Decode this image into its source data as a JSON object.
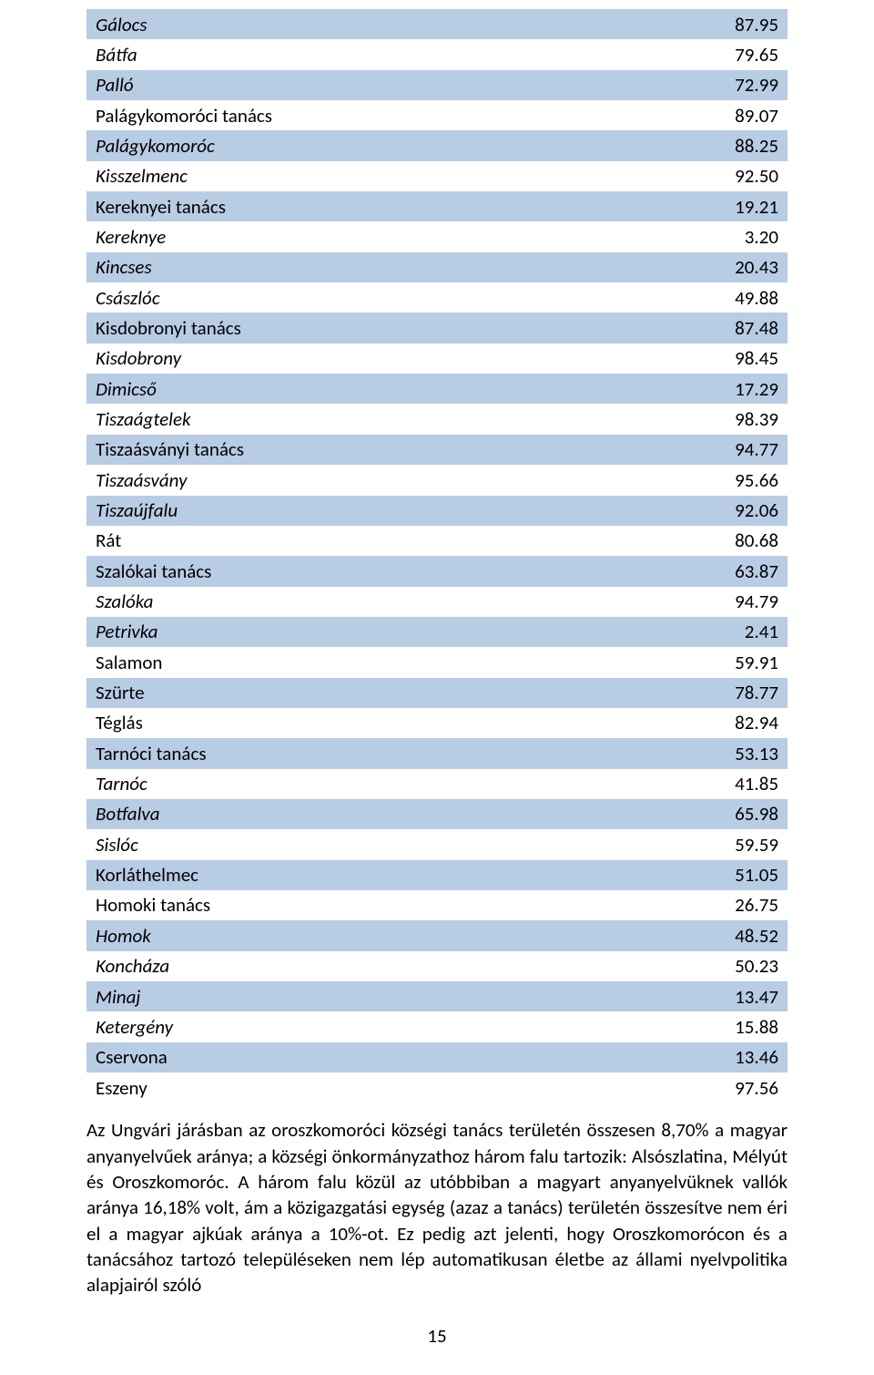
{
  "table": {
    "row_colors": {
      "blue": "#b8cce4",
      "white": "#ffffff"
    },
    "rows": [
      {
        "name": "Gálocs",
        "value": "87.95",
        "italic": true,
        "shade": "blue"
      },
      {
        "name": "Bátfa",
        "value": "79.65",
        "italic": true,
        "shade": "white"
      },
      {
        "name": "Palló",
        "value": "72.99",
        "italic": true,
        "shade": "blue"
      },
      {
        "name": "Palágykomoróci tanács",
        "value": "89.07",
        "italic": false,
        "shade": "white"
      },
      {
        "name": "Palágykomoróc",
        "value": "88.25",
        "italic": true,
        "shade": "blue"
      },
      {
        "name": "Kisszelmenc",
        "value": "92.50",
        "italic": true,
        "shade": "white"
      },
      {
        "name": "Kereknyei tanács",
        "value": "19.21",
        "italic": false,
        "shade": "blue"
      },
      {
        "name": "Kereknye",
        "value": "3.20",
        "italic": true,
        "shade": "white"
      },
      {
        "name": "Kincses",
        "value": "20.43",
        "italic": true,
        "shade": "blue"
      },
      {
        "name": "Császlóc",
        "value": "49.88",
        "italic": true,
        "shade": "white"
      },
      {
        "name": "Kisdobronyi tanács",
        "value": "87.48",
        "italic": false,
        "shade": "blue"
      },
      {
        "name": "Kisdobrony",
        "value": "98.45",
        "italic": true,
        "shade": "white"
      },
      {
        "name": "Dimicső",
        "value": "17.29",
        "italic": true,
        "shade": "blue"
      },
      {
        "name": "Tiszaágtelek",
        "value": "98.39",
        "italic": true,
        "shade": "white"
      },
      {
        "name": "Tiszaásványi tanács",
        "value": "94.77",
        "italic": false,
        "shade": "blue"
      },
      {
        "name": "Tiszaásvány",
        "value": "95.66",
        "italic": true,
        "shade": "white"
      },
      {
        "name": "Tiszaújfalu",
        "value": "92.06",
        "italic": true,
        "shade": "blue"
      },
      {
        "name": "Rát",
        "value": "80.68",
        "italic": false,
        "shade": "white"
      },
      {
        "name": "Szalókai tanács",
        "value": "63.87",
        "italic": false,
        "shade": "blue"
      },
      {
        "name": "Szalóka",
        "value": "94.79",
        "italic": true,
        "shade": "white"
      },
      {
        "name": "Petrivka",
        "value": "2.41",
        "italic": true,
        "shade": "blue"
      },
      {
        "name": "Salamon",
        "value": "59.91",
        "italic": false,
        "shade": "white"
      },
      {
        "name": "Szürte",
        "value": "78.77",
        "italic": false,
        "shade": "blue"
      },
      {
        "name": "Téglás",
        "value": "82.94",
        "italic": false,
        "shade": "white"
      },
      {
        "name": "Tarnóci tanács",
        "value": "53.13",
        "italic": false,
        "shade": "blue"
      },
      {
        "name": "Tarnóc",
        "value": "41.85",
        "italic": true,
        "shade": "white"
      },
      {
        "name": "Botfalva",
        "value": "65.98",
        "italic": true,
        "shade": "blue"
      },
      {
        "name": "Sislóc",
        "value": "59.59",
        "italic": true,
        "shade": "white"
      },
      {
        "name": "Korláthelmec",
        "value": "51.05",
        "italic": false,
        "shade": "blue"
      },
      {
        "name": "Homoki tanács",
        "value": "26.75",
        "italic": false,
        "shade": "white"
      },
      {
        "name": "Homok",
        "value": "48.52",
        "italic": true,
        "shade": "blue"
      },
      {
        "name": "Koncháza",
        "value": "50.23",
        "italic": true,
        "shade": "white"
      },
      {
        "name": "Minaj",
        "value": "13.47",
        "italic": true,
        "shade": "blue"
      },
      {
        "name": "Ketergény",
        "value": "15.88",
        "italic": true,
        "shade": "white"
      },
      {
        "name": "Cservona",
        "value": "13.46",
        "italic": false,
        "shade": "blue"
      },
      {
        "name": "Eszeny",
        "value": "97.56",
        "italic": false,
        "shade": "white"
      }
    ]
  },
  "paragraph": "Az Ungvári járásban az oroszkomoróci községi tanács területén összesen 8,70% a magyar anyanyelvűek aránya; a községi önkormányzathoz három falu tartozik: Alsószlatina, Mélyút és Oroszkomoróc. A három falu közül az utóbbiban a magyart anyanyelvüknek vallók aránya 16,18% volt, ám a közigazgatási egység (azaz a tanács) területén összesítve nem éri el a magyar ajkúak aránya a 10%-ot. Ez pedig azt jelenti, hogy Oroszkomorócon és a tanácsához tartozó településeken nem lép automatikusan életbe az állami nyelvpolitika alapjairól szóló",
  "page_number": "15"
}
